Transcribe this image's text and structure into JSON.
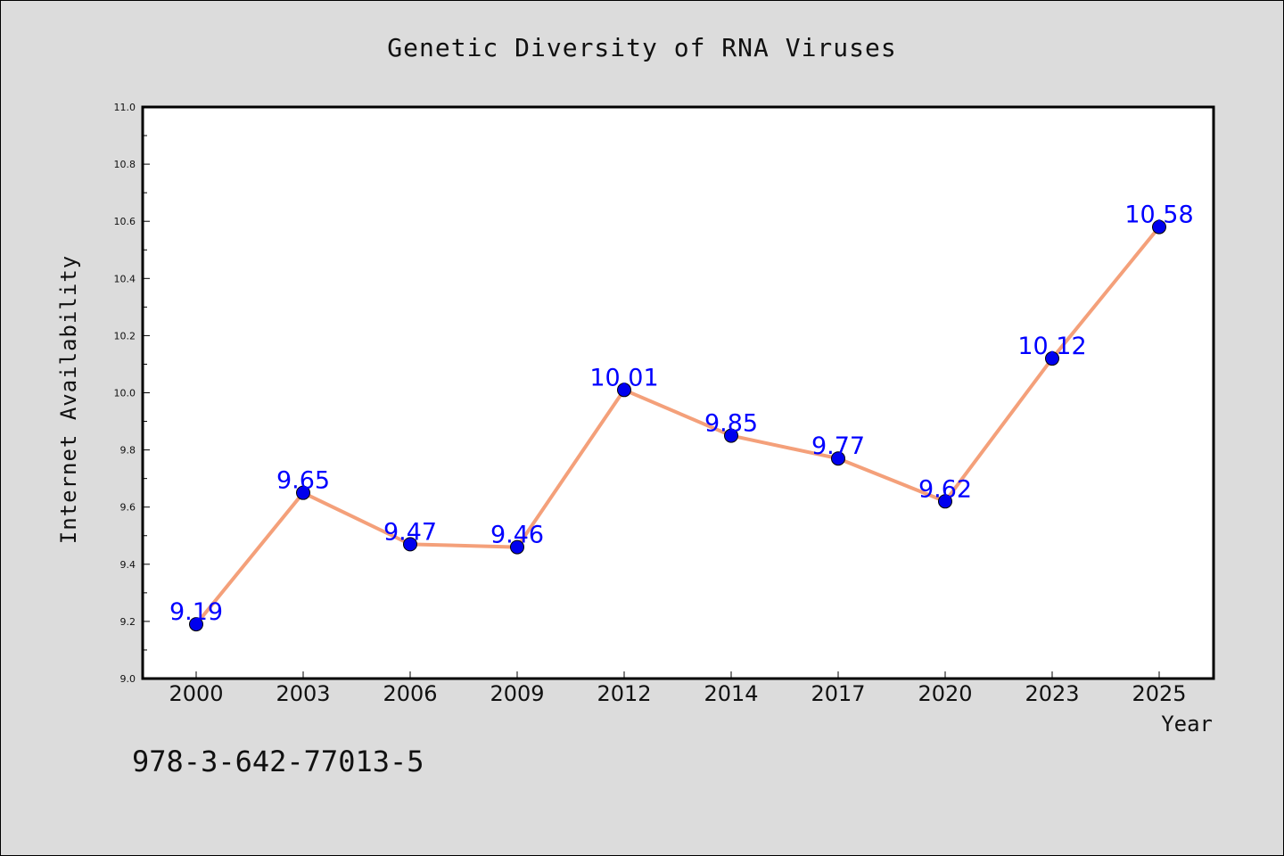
{
  "chart_data": {
    "type": "line",
    "title": "Genetic Diversity of RNA Viruses",
    "xlabel": "Year",
    "ylabel": "Internet Availability",
    "categories": [
      "2000",
      "2003",
      "2006",
      "2009",
      "2012",
      "2014",
      "2017",
      "2020",
      "2023",
      "2025"
    ],
    "series": [
      {
        "values": [
          9.19,
          9.65,
          9.47,
          9.46,
          10.01,
          9.85,
          9.77,
          9.62,
          10.12,
          10.58
        ],
        "line_color": "#f4a07a",
        "marker_color": "#0000ee"
      }
    ],
    "data_labels": [
      "9.19",
      "9.65",
      "9.47",
      "9.46",
      "10.01",
      "9.85",
      "9.77",
      "9.62",
      "10.12",
      "10.58"
    ],
    "ylim": [
      9.0,
      11.0
    ],
    "yticks": [
      "9.0",
      "9.2",
      "9.4",
      "9.6",
      "9.8",
      "10.0",
      "10.2",
      "10.4",
      "10.6",
      "10.8",
      "11.0"
    ],
    "grid": false,
    "legend": "none"
  },
  "footer_text": "978-3-642-77013-5"
}
